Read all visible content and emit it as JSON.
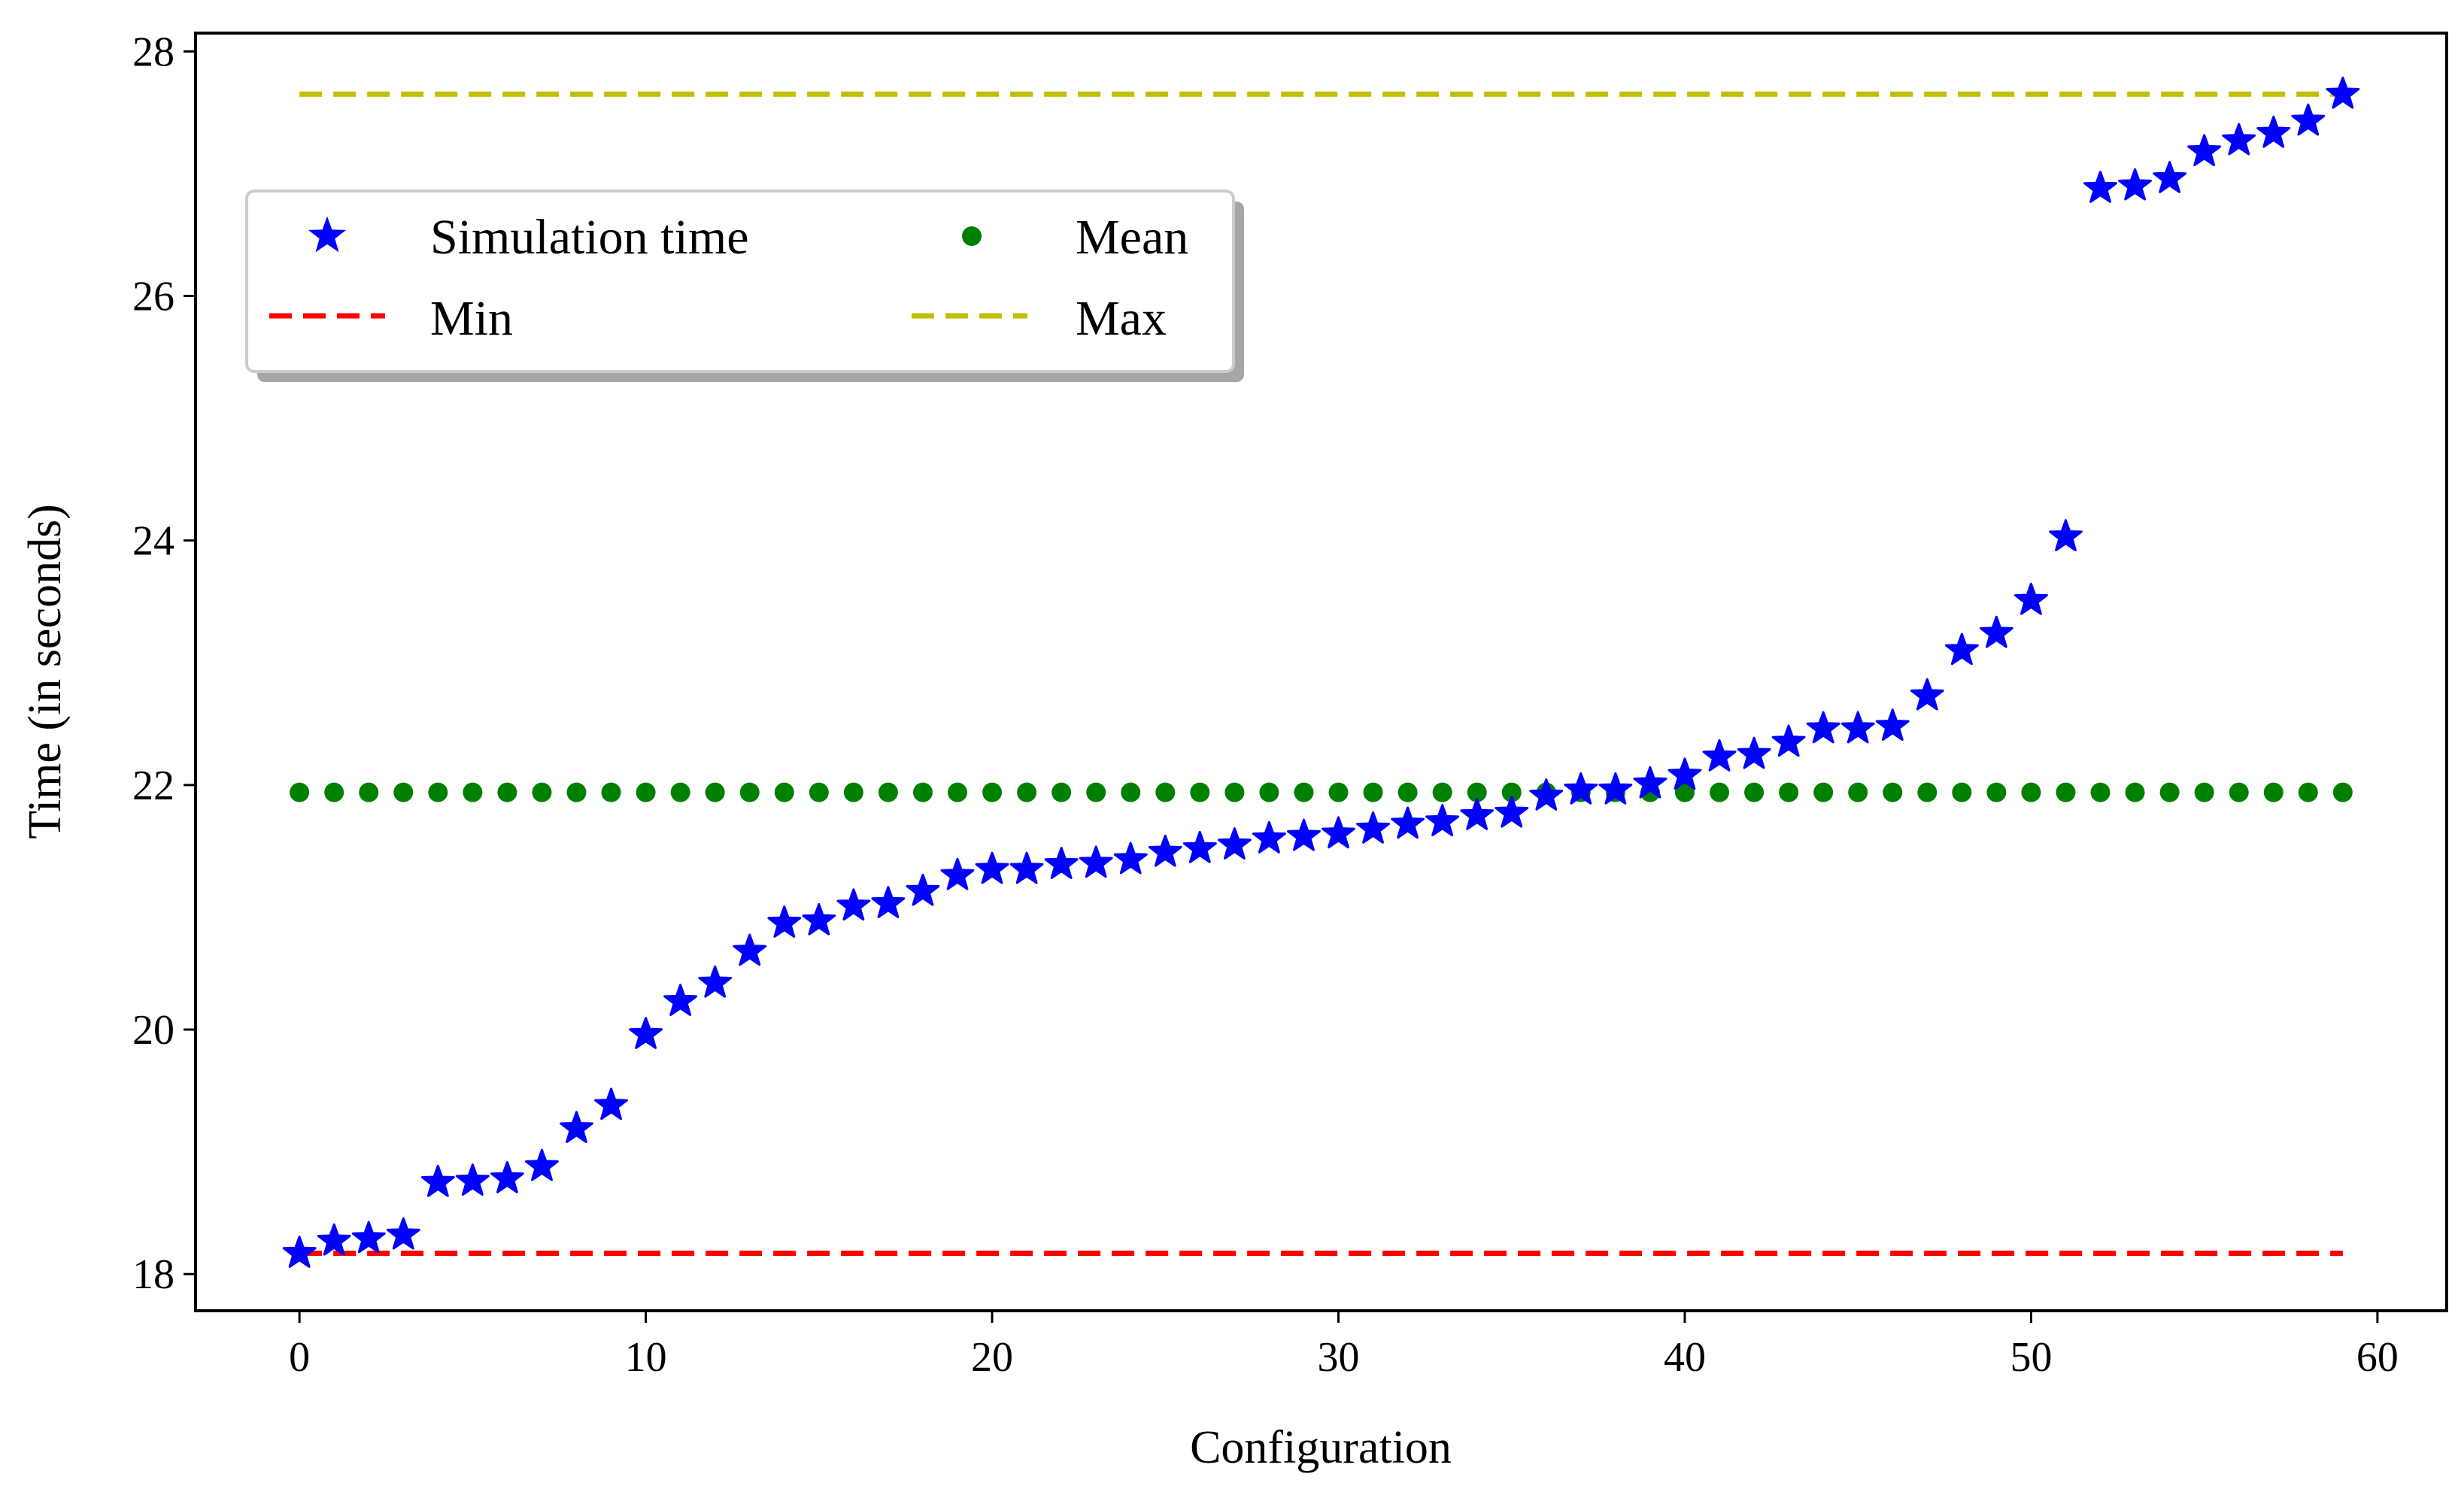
{
  "chart_data": {
    "type": "scatter",
    "title": "",
    "xlabel": "Configuration",
    "ylabel": "Time (in seconds)",
    "xlim": [
      -3,
      62
    ],
    "ylim": [
      17.7,
      28.15
    ],
    "xticks": [
      0,
      10,
      20,
      30,
      40,
      50,
      60
    ],
    "yticks": [
      18,
      20,
      22,
      24,
      26,
      28
    ],
    "grid": false,
    "legend_position": "upper-left",
    "colors": {
      "simulation": "#0000ff",
      "mean": "#008000",
      "min": "#ff0000",
      "max": "#bfbf00"
    },
    "series": [
      {
        "name": "Simulation time",
        "marker": "star",
        "x": [
          0,
          1,
          2,
          3,
          4,
          5,
          6,
          7,
          8,
          9,
          10,
          11,
          12,
          13,
          14,
          15,
          16,
          17,
          18,
          19,
          20,
          21,
          22,
          23,
          24,
          25,
          26,
          27,
          28,
          29,
          30,
          31,
          32,
          33,
          34,
          35,
          36,
          37,
          38,
          39,
          40,
          41,
          42,
          43,
          44,
          45,
          46,
          47,
          48,
          49,
          50,
          51,
          52,
          53,
          54,
          55,
          56,
          57,
          58,
          59
        ],
        "values": [
          18.17,
          18.27,
          18.29,
          18.32,
          18.75,
          18.76,
          18.78,
          18.88,
          19.19,
          19.38,
          19.96,
          20.23,
          20.38,
          20.64,
          20.87,
          20.89,
          21.01,
          21.03,
          21.13,
          21.26,
          21.31,
          21.31,
          21.35,
          21.36,
          21.39,
          21.45,
          21.48,
          21.51,
          21.56,
          21.58,
          21.6,
          21.64,
          21.68,
          21.7,
          21.75,
          21.77,
          21.91,
          21.96,
          21.96,
          22.01,
          22.08,
          22.23,
          22.25,
          22.35,
          22.46,
          22.46,
          22.48,
          22.73,
          23.1,
          23.24,
          23.51,
          24.03,
          26.88,
          26.9,
          26.96,
          27.18,
          27.27,
          27.33,
          27.43,
          27.65
        ]
      },
      {
        "name": "Mean",
        "marker": "dot",
        "x": [
          0,
          1,
          2,
          3,
          4,
          5,
          6,
          7,
          8,
          9,
          10,
          11,
          12,
          13,
          14,
          15,
          16,
          17,
          18,
          19,
          20,
          21,
          22,
          23,
          24,
          25,
          26,
          27,
          28,
          29,
          30,
          31,
          32,
          33,
          34,
          35,
          36,
          37,
          38,
          39,
          40,
          41,
          42,
          43,
          44,
          45,
          46,
          47,
          48,
          49,
          50,
          51,
          52,
          53,
          54,
          55,
          56,
          57,
          58,
          59
        ],
        "value": 21.94
      },
      {
        "name": "Min",
        "line": "dashed",
        "x_range": [
          0,
          59
        ],
        "value": 18.17
      },
      {
        "name": "Max",
        "line": "dashed",
        "x_range": [
          0,
          59
        ],
        "value": 27.65
      }
    ]
  }
}
